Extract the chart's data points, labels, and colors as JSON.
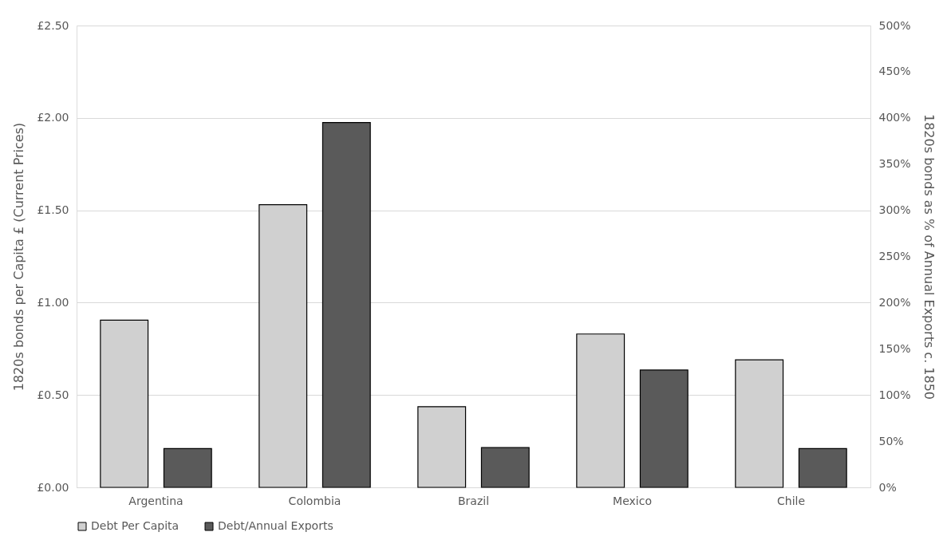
{
  "chart_data": {
    "type": "bar",
    "categories": [
      "Argentina",
      "Colombia",
      "Brazil",
      "Mexico",
      "Chile"
    ],
    "series": [
      {
        "name": "Debt Per Capita",
        "color": "#d0d0d0",
        "values": [
          0.905,
          1.53,
          0.437,
          0.83,
          0.69
        ]
      },
      {
        "name": "Debt/Annual Exports",
        "color": "#5a5a5a",
        "axis": "y2",
        "values": [
          42,
          395,
          43,
          127,
          42
        ]
      }
    ],
    "ylabel": "1820s bonds per Capita £ (Current Prices)",
    "y2label": "1820s bonds as % of Annual Exports c. 1850",
    "ylim": [
      0,
      2.5
    ],
    "yticks": [
      {
        "value": 0,
        "label": "£0.00"
      },
      {
        "value": 0.5,
        "label": "£0.50"
      },
      {
        "value": 1,
        "label": "£1.00"
      },
      {
        "value": 1.5,
        "label": "£1.50"
      },
      {
        "value": 2,
        "label": "£2.00"
      },
      {
        "value": 2.5,
        "label": "£2.50"
      }
    ],
    "y2lim": [
      0,
      500
    ],
    "y2ticks": [
      {
        "value": 0,
        "label": "0%"
      },
      {
        "value": 50,
        "label": "50%"
      },
      {
        "value": 100,
        "label": "100%"
      },
      {
        "value": 150,
        "label": "150%"
      },
      {
        "value": 200,
        "label": "200%"
      },
      {
        "value": 250,
        "label": "250%"
      },
      {
        "value": 300,
        "label": "300%"
      },
      {
        "value": 350,
        "label": "350%"
      },
      {
        "value": 400,
        "label": "400%"
      },
      {
        "value": 450,
        "label": "450%"
      },
      {
        "value": 500,
        "label": "500%"
      }
    ],
    "grid": "y",
    "legend": "bottom"
  }
}
